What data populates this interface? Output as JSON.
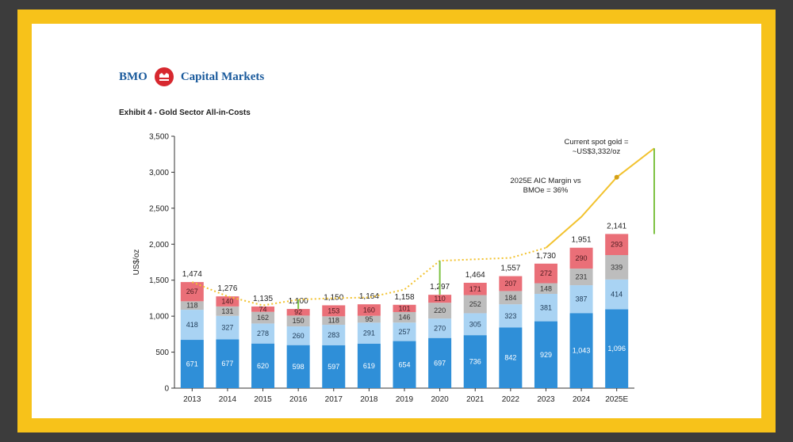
{
  "brand": {
    "name_left": "BMO",
    "name_right": "Capital Markets"
  },
  "exhibit_title": "Exhibit 4 - Gold Sector All-in-Costs",
  "colors": {
    "frame": "#f7c21a",
    "background": "#3c3c3c",
    "brand": "#1a5a9c",
    "logo": "#d7282f",
    "seg_dark_blue": "#2f8fd8",
    "seg_light_blue": "#a9d3f3",
    "seg_grey": "#bdbdbd",
    "seg_red": "#ea6f78",
    "price_line": "#f2c22e",
    "margin_markers": "#7dc242"
  },
  "chart_data": {
    "type": "bar",
    "stacked": true,
    "title": "",
    "xlabel": "",
    "ylabel": "US$/oz",
    "ylim": [
      0,
      3500
    ],
    "yticks": [
      "0",
      "500",
      "1,000",
      "1,500",
      "2,000",
      "2,500",
      "3,000",
      "3,500"
    ],
    "categories": [
      "2013",
      "2014",
      "2015",
      "2016",
      "2017",
      "2018",
      "2019",
      "2020",
      "2021",
      "2022",
      "2023",
      "2024",
      "2025E"
    ],
    "series": [
      {
        "values": [
          671,
          677,
          620,
          598,
          597,
          619,
          654,
          697,
          736,
          842,
          929,
          1043,
          1096
        ],
        "value_labels": [
          "671",
          "677",
          "620",
          "598",
          "597",
          "619",
          "654",
          "697",
          "736",
          "842",
          "929",
          "1,043",
          "1,096"
        ],
        "color": "#2f8fd8"
      },
      {
        "values": [
          418,
          327,
          278,
          260,
          283,
          291,
          257,
          270,
          305,
          323,
          381,
          387,
          414
        ],
        "value_labels": [
          "418",
          "327",
          "278",
          "260",
          "283",
          "291",
          "257",
          "270",
          "305",
          "323",
          "381",
          "387",
          "414"
        ],
        "color": "#a9d3f3"
      },
      {
        "values": [
          118,
          131,
          162,
          150,
          118,
          95,
          146,
          220,
          252,
          184,
          148,
          231,
          339
        ],
        "value_labels": [
          "118",
          "131",
          "162",
          "150",
          "118",
          "95",
          "146",
          "220",
          "252",
          "184",
          "148",
          "231",
          "339"
        ],
        "color": "#bdbdbd"
      },
      {
        "values": [
          267,
          140,
          74,
          92,
          153,
          160,
          101,
          110,
          171,
          207,
          272,
          290,
          293
        ],
        "value_labels": [
          "267",
          "140",
          "74",
          "92",
          "153",
          "160",
          "101",
          "110",
          "171",
          "207",
          "272",
          "290",
          "293"
        ],
        "color": "#ea6f78"
      }
    ],
    "totals": [
      "1,474",
      "1,276",
      "1,135",
      "1,100",
      "1,150",
      "1,164",
      "1,158",
      "1,297",
      "1,464",
      "1,557",
      "1,730",
      "1,951",
      "2,141"
    ],
    "gold_price_line": {
      "color": "#f2c22e",
      "points": [
        {
          "x": "2013",
          "y": 1474
        },
        {
          "x": "2014",
          "y": 1276
        },
        {
          "x": "2015",
          "y": 1150
        },
        {
          "x": "2016",
          "y": 1230
        },
        {
          "x": "2017",
          "y": 1250
        },
        {
          "x": "2018",
          "y": 1260
        },
        {
          "x": "2019",
          "y": 1370
        },
        {
          "x": "2020",
          "y": 1770
        },
        {
          "x": "2021",
          "y": 1790
        },
        {
          "x": "2022",
          "y": 1810
        },
        {
          "x": "2023",
          "y": 1950
        },
        {
          "x": "2024",
          "y": 2380
        },
        {
          "x": "2025E",
          "y": 2930
        }
      ],
      "end_value": 3332
    },
    "annotations": {
      "spot_gold": [
        "Current spot gold =",
        "~US$3,332/oz"
      ],
      "margin": [
        "2025E AIC Margin vs",
        "BMOe = 36%"
      ]
    }
  }
}
